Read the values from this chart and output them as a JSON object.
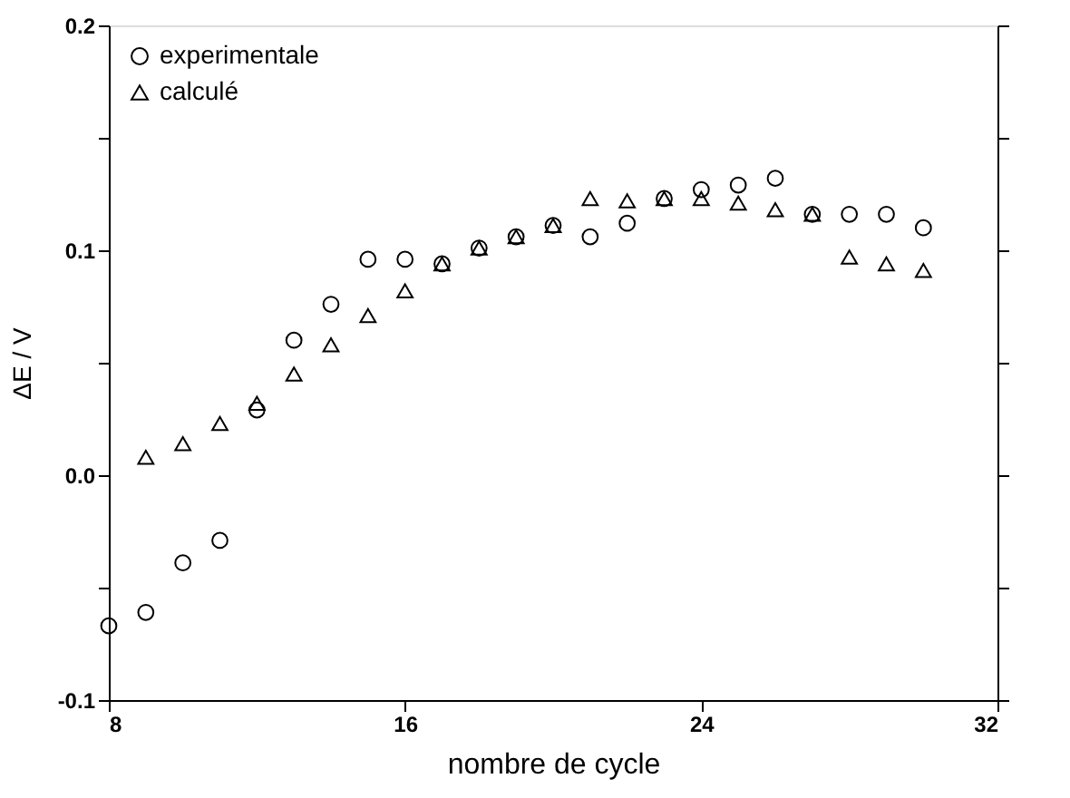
{
  "chart_data": {
    "type": "scatter",
    "xlabel": "nombre de cycle",
    "ylabel": "ΔE / V",
    "xlim": [
      8,
      32
    ],
    "xticks": [
      8,
      16,
      24,
      32
    ],
    "ylim": [
      -0.1,
      0.2
    ],
    "yticks": [
      {
        "value": -0.1,
        "label": "-0.1"
      },
      {
        "value": -0.05,
        "label": null
      },
      {
        "value": 0,
        "label": "0.0"
      },
      {
        "value": 0.05,
        "label": null
      },
      {
        "value": 0.1,
        "label": "0.1"
      },
      {
        "value": 0.15,
        "label": null
      },
      {
        "value": 0.2,
        "label": "0.2"
      }
    ],
    "grid": false,
    "legend": "top left",
    "series": [
      {
        "name": "experimentale",
        "color": "#000000",
        "marker": "circle",
        "x": [
          8,
          9,
          10,
          11,
          12,
          13,
          14,
          15,
          16,
          17,
          18,
          19,
          20,
          21,
          22,
          23,
          24,
          25,
          26,
          27,
          28,
          29,
          30
        ],
        "values": [
          -0.067,
          -0.061,
          -0.039,
          -0.029,
          0.029,
          0.06,
          0.076,
          0.096,
          0.096,
          0.094,
          0.101,
          0.106,
          0.111,
          0.106,
          0.112,
          0.123,
          0.127,
          0.129,
          0.132,
          0.116,
          0.116,
          0.116,
          0.11
        ]
      },
      {
        "name": "calculé",
        "color": "#000000",
        "marker": "triangle",
        "x": [
          9,
          10,
          11,
          12,
          13,
          14,
          15,
          16,
          17,
          18,
          19,
          20,
          21,
          22,
          23,
          24,
          25,
          26,
          27,
          28,
          29,
          30
        ],
        "values": [
          0.008,
          0.014,
          0.023,
          0.032,
          0.045,
          0.058,
          0.071,
          0.082,
          0.094,
          0.101,
          0.106,
          0.111,
          0.123,
          0.122,
          0.123,
          0.123,
          0.121,
          0.118,
          0.116,
          0.097,
          0.094,
          0.091
        ]
      }
    ]
  }
}
